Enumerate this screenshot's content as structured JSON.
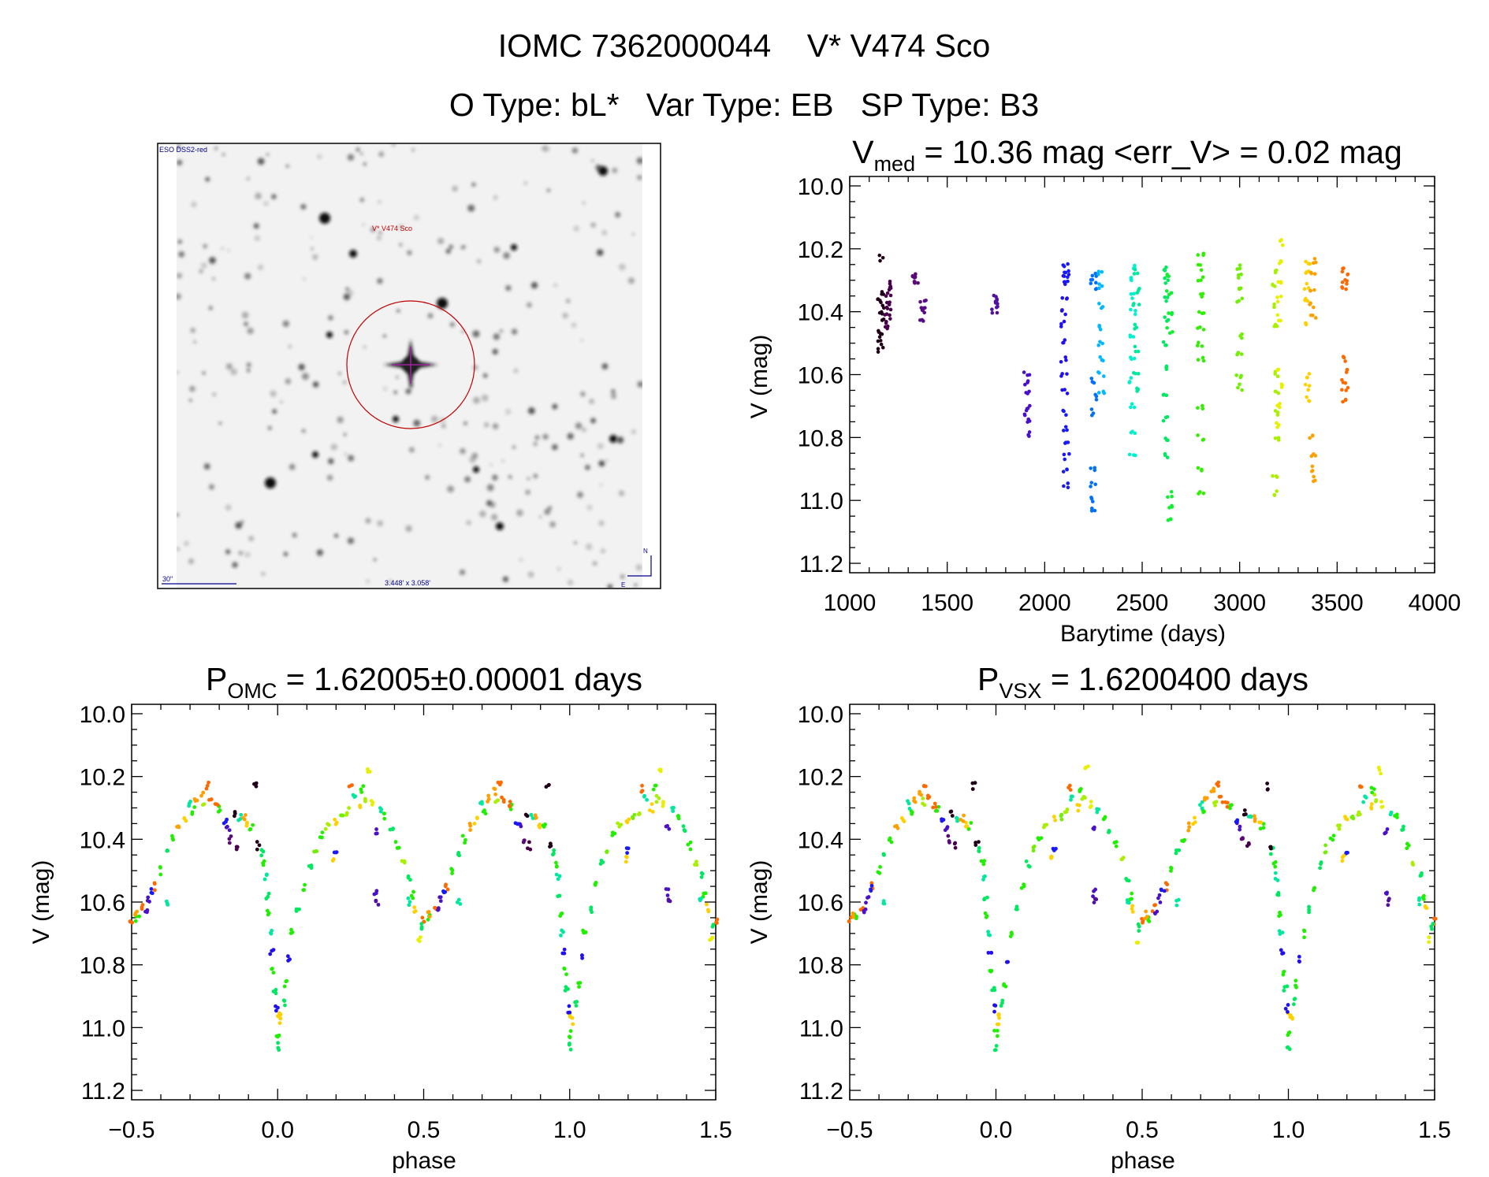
{
  "header": {
    "line1": "IOMC 7362000044    V* V474 Sco",
    "line2": "O Type: bL*   Var Type: EB   SP Type: B3"
  },
  "finder": {
    "survey": "ESO DSS2-red",
    "target": "V* V474 Sco",
    "scale": "30\"",
    "fov": "3.448' x 3.058'",
    "north": "N",
    "east": "E"
  },
  "chart_data": [
    {
      "type": "scatter",
      "title_main": "V",
      "title_sub": "med",
      "title_rest": " = 10.36 mag <err_V> = 0.02 mag",
      "xlabel": "Barytime (days)",
      "ylabel": "V (mag)",
      "xlim": [
        1000,
        4000
      ],
      "ylim": [
        9.97,
        11.23
      ],
      "y_inverted": true,
      "xticks": [
        "1000",
        "1500",
        "2000",
        "2500",
        "3000",
        "3500",
        "4000"
      ],
      "yticks": [
        "10.0",
        "10.2",
        "10.4",
        "10.6",
        "10.8",
        "11.0",
        "11.2"
      ],
      "seasons": [
        {
          "t": 1160,
          "color": "#200018",
          "v": [
            10.23,
            10.34,
            10.36,
            10.38,
            10.4,
            10.42,
            10.46,
            10.48,
            10.5,
            10.52
          ]
        },
        {
          "t": 1195,
          "color": "#48004a",
          "v": [
            10.31,
            10.33,
            10.35,
            10.37,
            10.39,
            10.41,
            10.43,
            10.45
          ]
        },
        {
          "t": 1335,
          "color": "#5a0a78",
          "v": [
            10.28,
            10.29,
            10.3,
            10.31
          ]
        },
        {
          "t": 1375,
          "color": "#5a0a88",
          "v": [
            10.37,
            10.38,
            10.4,
            10.42
          ]
        },
        {
          "t": 1745,
          "color": "#5010a0",
          "v": [
            10.35,
            10.37,
            10.38,
            10.4
          ]
        },
        {
          "t": 1910,
          "color": "#4a10c8",
          "v": [
            10.6,
            10.63,
            10.66,
            10.7,
            10.72,
            10.75,
            10.79
          ]
        },
        {
          "t": 2100,
          "color": "#2010f0",
          "v": [
            10.28,
            10.31,
            10.35,
            10.4,
            10.44,
            10.5,
            10.55,
            10.6,
            10.65
          ]
        },
        {
          "t": 2110,
          "color": "#1818f8",
          "v": [
            10.25,
            10.28,
            10.3,
            10.72,
            10.77,
            10.82,
            10.86,
            10.9,
            10.95
          ]
        },
        {
          "t": 2250,
          "color": "#0070ff",
          "v": [
            10.28,
            10.3,
            10.32,
            10.62,
            10.67,
            10.72,
            10.9,
            10.95,
            11.0,
            11.03
          ]
        },
        {
          "t": 2290,
          "color": "#00b8ff",
          "v": [
            10.28,
            10.32,
            10.38,
            10.45,
            10.5,
            10.55,
            10.6,
            10.65
          ]
        },
        {
          "t": 2450,
          "color": "#00f0d0",
          "v": [
            10.26,
            10.3,
            10.35,
            10.4,
            10.48,
            10.55,
            10.62,
            10.7,
            10.78,
            10.85
          ]
        },
        {
          "t": 2470,
          "color": "#00e8a0",
          "v": [
            10.27,
            10.33,
            10.38,
            10.45,
            10.52,
            10.6,
            10.65
          ]
        },
        {
          "t": 2620,
          "color": "#00e860",
          "v": [
            10.26,
            10.3,
            10.36,
            10.42,
            10.5,
            10.58,
            10.66,
            10.74,
            10.8,
            10.86
          ]
        },
        {
          "t": 2640,
          "color": "#10f030",
          "v": [
            10.28,
            10.34,
            10.4,
            10.46,
            10.98,
            11.02,
            11.06
          ]
        },
        {
          "t": 2800,
          "color": "#30f000",
          "v": [
            10.22,
            10.26,
            10.3,
            10.35,
            10.4,
            10.45,
            10.5,
            10.55,
            10.7,
            10.8,
            10.9,
            10.98
          ]
        },
        {
          "t": 3000,
          "color": "#70f000",
          "v": [
            10.26,
            10.29,
            10.32,
            10.36,
            10.48,
            10.54,
            10.6,
            10.64
          ]
        },
        {
          "t": 3185,
          "color": "#a8f000",
          "v": [
            10.27,
            10.32,
            10.38,
            10.44,
            10.6,
            10.66,
            10.72,
            10.8,
            10.92,
            10.98
          ]
        },
        {
          "t": 3205,
          "color": "#e8f000",
          "v": [
            10.18,
            10.24,
            10.3,
            10.36,
            10.42,
            10.58,
            10.64,
            10.7,
            10.76
          ]
        },
        {
          "t": 3345,
          "color": "#ffd000",
          "v": [
            10.24,
            10.28,
            10.32,
            10.36,
            10.44,
            10.6,
            10.64,
            10.68
          ]
        },
        {
          "t": 3375,
          "color": "#ffa000",
          "v": [
            10.24,
            10.28,
            10.34,
            10.38,
            10.42,
            10.8,
            10.86,
            10.9,
            10.93
          ]
        },
        {
          "t": 3540,
          "color": "#ff6a00",
          "v": [
            10.27,
            10.29,
            10.31,
            10.33,
            10.55,
            10.59,
            10.62,
            10.65,
            10.68
          ]
        }
      ]
    },
    {
      "type": "scatter",
      "title_main": "P",
      "title_sub": "OMC",
      "title_rest": " = 1.62005±0.00001 days",
      "xlabel": "phase",
      "ylabel": "V (mag)",
      "xlim": [
        -0.5,
        1.5
      ],
      "ylim": [
        9.97,
        11.23
      ],
      "y_inverted": true,
      "period_days": 1.62005,
      "xticks": [
        "−0.5",
        "0.0",
        "0.5",
        "1.0",
        "1.5"
      ],
      "yticks": [
        "10.0",
        "10.2",
        "10.4",
        "10.6",
        "10.8",
        "11.0",
        "11.2"
      ]
    },
    {
      "type": "scatter",
      "title_main": "P",
      "title_sub": "VSX",
      "title_rest": " = 1.6200400 days",
      "xlabel": "phase",
      "ylabel": "V (mag)",
      "xlim": [
        -0.5,
        1.5
      ],
      "ylim": [
        9.97,
        11.23
      ],
      "y_inverted": true,
      "period_days": 1.62004,
      "xticks": [
        "−0.5",
        "0.0",
        "0.5",
        "1.0",
        "1.5"
      ],
      "yticks": [
        "10.0",
        "10.2",
        "10.4",
        "10.6",
        "10.8",
        "11.0",
        "11.2"
      ]
    }
  ],
  "phase_points": [
    [
      0.0,
      11.02,
      10
    ],
    [
      0.0,
      11.06,
      9
    ],
    [
      0.005,
      10.96,
      14
    ],
    [
      0.995,
      10.94,
      6
    ],
    [
      0.99,
      10.88,
      9
    ],
    [
      0.985,
      10.82,
      10
    ],
    [
      0.98,
      10.76,
      6
    ],
    [
      0.975,
      10.7,
      8
    ],
    [
      0.97,
      10.64,
      10
    ],
    [
      0.965,
      10.58,
      9
    ],
    [
      0.96,
      10.52,
      8
    ],
    [
      0.955,
      10.48,
      10
    ],
    [
      0.945,
      10.44,
      9
    ],
    [
      0.935,
      10.42,
      0
    ],
    [
      0.925,
      10.23,
      0
    ],
    [
      0.91,
      10.36,
      10
    ],
    [
      0.9,
      10.35,
      14
    ],
    [
      0.885,
      10.33,
      15
    ],
    [
      0.87,
      10.33,
      8
    ],
    [
      0.85,
      10.32,
      0
    ],
    [
      0.86,
      10.42,
      1
    ],
    [
      0.84,
      10.4,
      2
    ],
    [
      0.83,
      10.36,
      5
    ],
    [
      0.82,
      10.34,
      7
    ],
    [
      0.8,
      10.3,
      10
    ],
    [
      0.79,
      10.29,
      16
    ],
    [
      0.77,
      10.27,
      16
    ],
    [
      0.75,
      10.28,
      12
    ],
    [
      0.74,
      10.25,
      15
    ],
    [
      0.72,
      10.27,
      15
    ],
    [
      0.71,
      10.31,
      10
    ],
    [
      0.7,
      10.29,
      8
    ],
    [
      0.68,
      10.34,
      14
    ],
    [
      0.66,
      10.36,
      15
    ],
    [
      0.64,
      10.4,
      10
    ],
    [
      0.62,
      10.44,
      9
    ],
    [
      0.6,
      10.5,
      10
    ],
    [
      0.58,
      10.55,
      16
    ],
    [
      0.56,
      10.59,
      5
    ],
    [
      0.54,
      10.62,
      16
    ],
    [
      0.52,
      10.65,
      10
    ],
    [
      0.5,
      10.66,
      16
    ],
    [
      0.49,
      10.68,
      9
    ],
    [
      0.485,
      10.72,
      13
    ],
    [
      0.47,
      10.62,
      14
    ],
    [
      0.46,
      10.58,
      10
    ],
    [
      0.45,
      10.52,
      9
    ],
    [
      0.43,
      10.47,
      12
    ],
    [
      0.41,
      10.42,
      10
    ],
    [
      0.39,
      10.37,
      9
    ],
    [
      0.37,
      10.33,
      10
    ],
    [
      0.35,
      10.31,
      8
    ],
    [
      0.335,
      10.37,
      5
    ],
    [
      0.335,
      10.57,
      5
    ],
    [
      0.34,
      10.6,
      4
    ],
    [
      0.32,
      10.29,
      13
    ],
    [
      0.31,
      10.18,
      13
    ],
    [
      0.3,
      10.27,
      12
    ],
    [
      0.29,
      10.24,
      10
    ],
    [
      0.28,
      10.3,
      14
    ],
    [
      0.26,
      10.27,
      8
    ],
    [
      0.24,
      10.31,
      12
    ],
    [
      0.22,
      10.33,
      11
    ],
    [
      0.2,
      10.34,
      14
    ],
    [
      0.2,
      10.44,
      7
    ],
    [
      0.19,
      10.46,
      14
    ],
    [
      0.17,
      10.36,
      12
    ],
    [
      0.15,
      10.39,
      10
    ],
    [
      0.13,
      10.43,
      11
    ],
    [
      0.11,
      10.48,
      9
    ],
    [
      0.09,
      10.55,
      10
    ],
    [
      0.07,
      10.62,
      9
    ],
    [
      0.05,
      10.7,
      10
    ],
    [
      0.04,
      10.78,
      6
    ],
    [
      0.03,
      10.86,
      10
    ],
    [
      0.02,
      10.92,
      9
    ],
    [
      0.01,
      10.98,
      14
    ],
    [
      0.62,
      10.6,
      8
    ],
    [
      0.55,
      10.63,
      5
    ],
    [
      0.57,
      10.56,
      7
    ],
    [
      0.515,
      10.64,
      15
    ],
    [
      0.45,
      10.6,
      8
    ],
    [
      0.25,
      10.24,
      16
    ],
    [
      0.76,
      10.23,
      16
    ]
  ],
  "season_colors": [
    "#200018",
    "#48004a",
    "#5a0a78",
    "#5a0a88",
    "#5010a0",
    "#4a10c8",
    "#2010f0",
    "#1818f8",
    "#00e8a0",
    "#00e860",
    "#20f000",
    "#70f000",
    "#a8f000",
    "#e8f000",
    "#ffd000",
    "#ffa000",
    "#ff6a00"
  ]
}
